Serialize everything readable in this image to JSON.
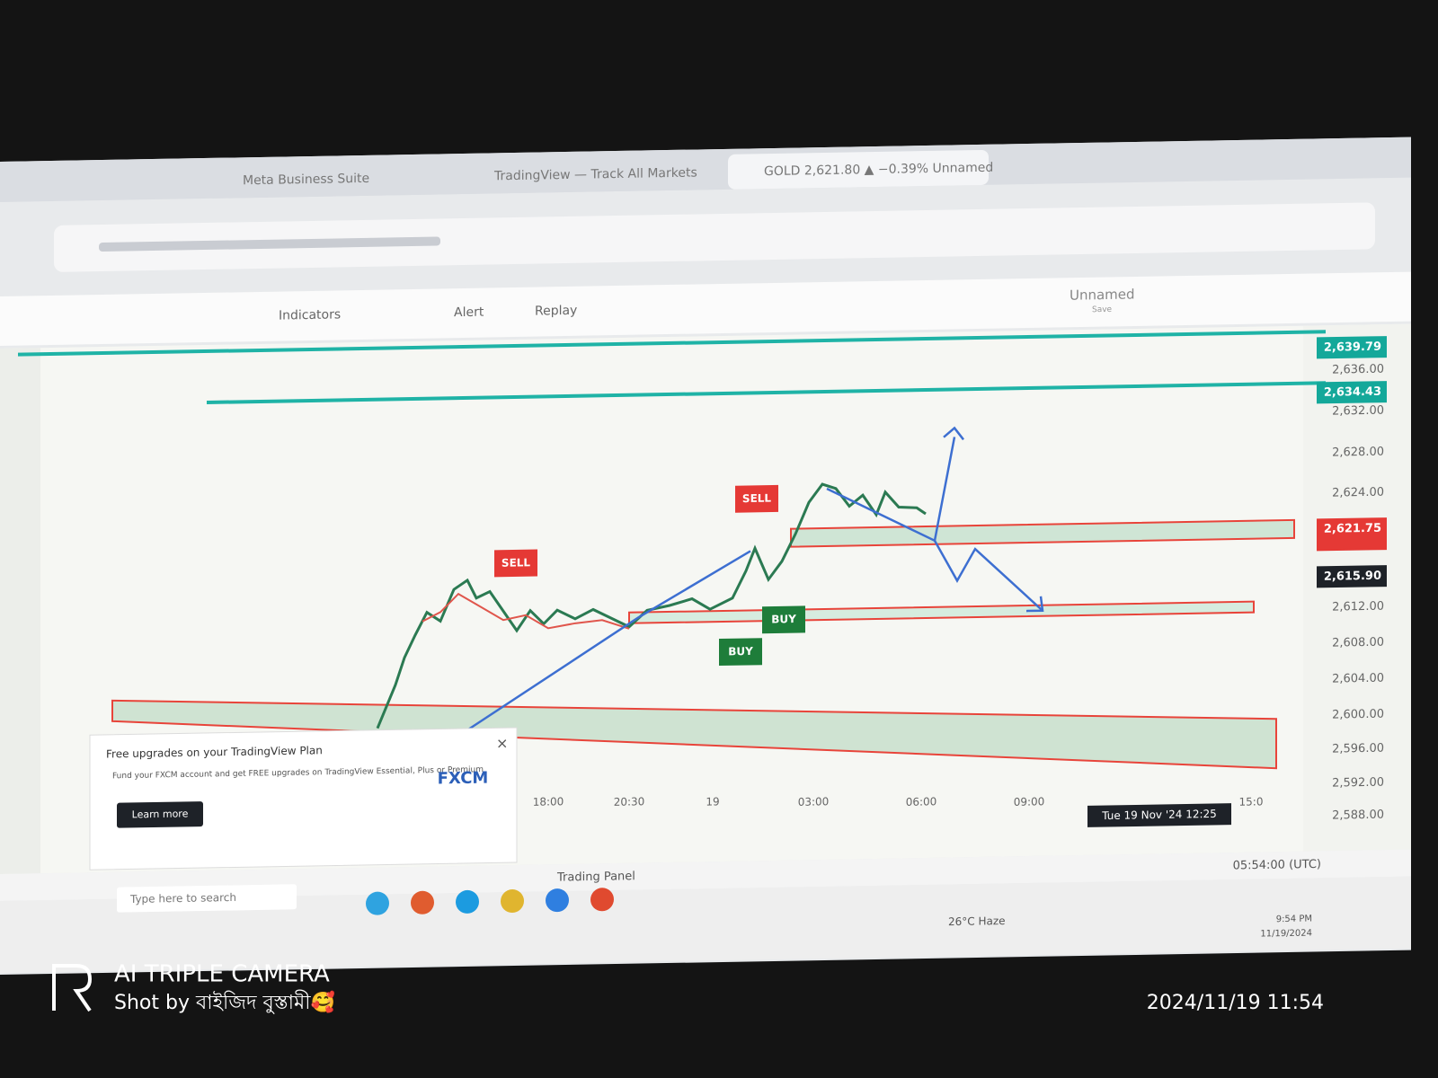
{
  "browser": {
    "tabs": [
      "Meta Business Suite",
      "TradingView — Track All Markets",
      "GOLD 2,621.80 ▲ −0.39% Unnamed"
    ]
  },
  "toolbar": {
    "items": [
      "Indicators",
      "Alert",
      "Replay"
    ],
    "layout_name": "Unnamed",
    "save": "Save"
  },
  "chart": {
    "signals": [
      "SELL",
      "SELL",
      "BUY",
      "BUY"
    ],
    "price_axis": [
      "2,636.00",
      "2,632.00",
      "2,628.00",
      "2,624.00",
      "2,612.00",
      "2,608.00",
      "2,604.00",
      "2,600.00",
      "2,596.00",
      "2,592.00",
      "2,588.00"
    ],
    "price_tags": [
      "2,639.79",
      "2,634.43",
      "2,621.75",
      "2,615.90"
    ],
    "time_axis": [
      "18:00",
      "20:30",
      "19",
      "03:00",
      "06:00",
      "09:00",
      "15:0"
    ],
    "cursor_time": "Tue 19 Nov '24  12:25"
  },
  "promo": {
    "title": "Free upgrades on your TradingView Plan",
    "body": "Fund your FXCM account and get FREE upgrades on TradingView Essential, Plus or Premium",
    "button": "Learn more",
    "brand": "FXCM"
  },
  "bottom_bar": {
    "panel": "Trading Panel",
    "clock": "05:54:00 (UTC)"
  },
  "taskbar": {
    "search": "Type here to search",
    "weather": "26°C  Haze",
    "time": "9:54 PM",
    "date": "11/19/2024"
  },
  "watermark": {
    "camera": "AI TRIPLE CAMERA",
    "credit": "Shot by বাইজিদ বুস্তামী🥰",
    "timestamp": "2024/11/19 11:54"
  }
}
